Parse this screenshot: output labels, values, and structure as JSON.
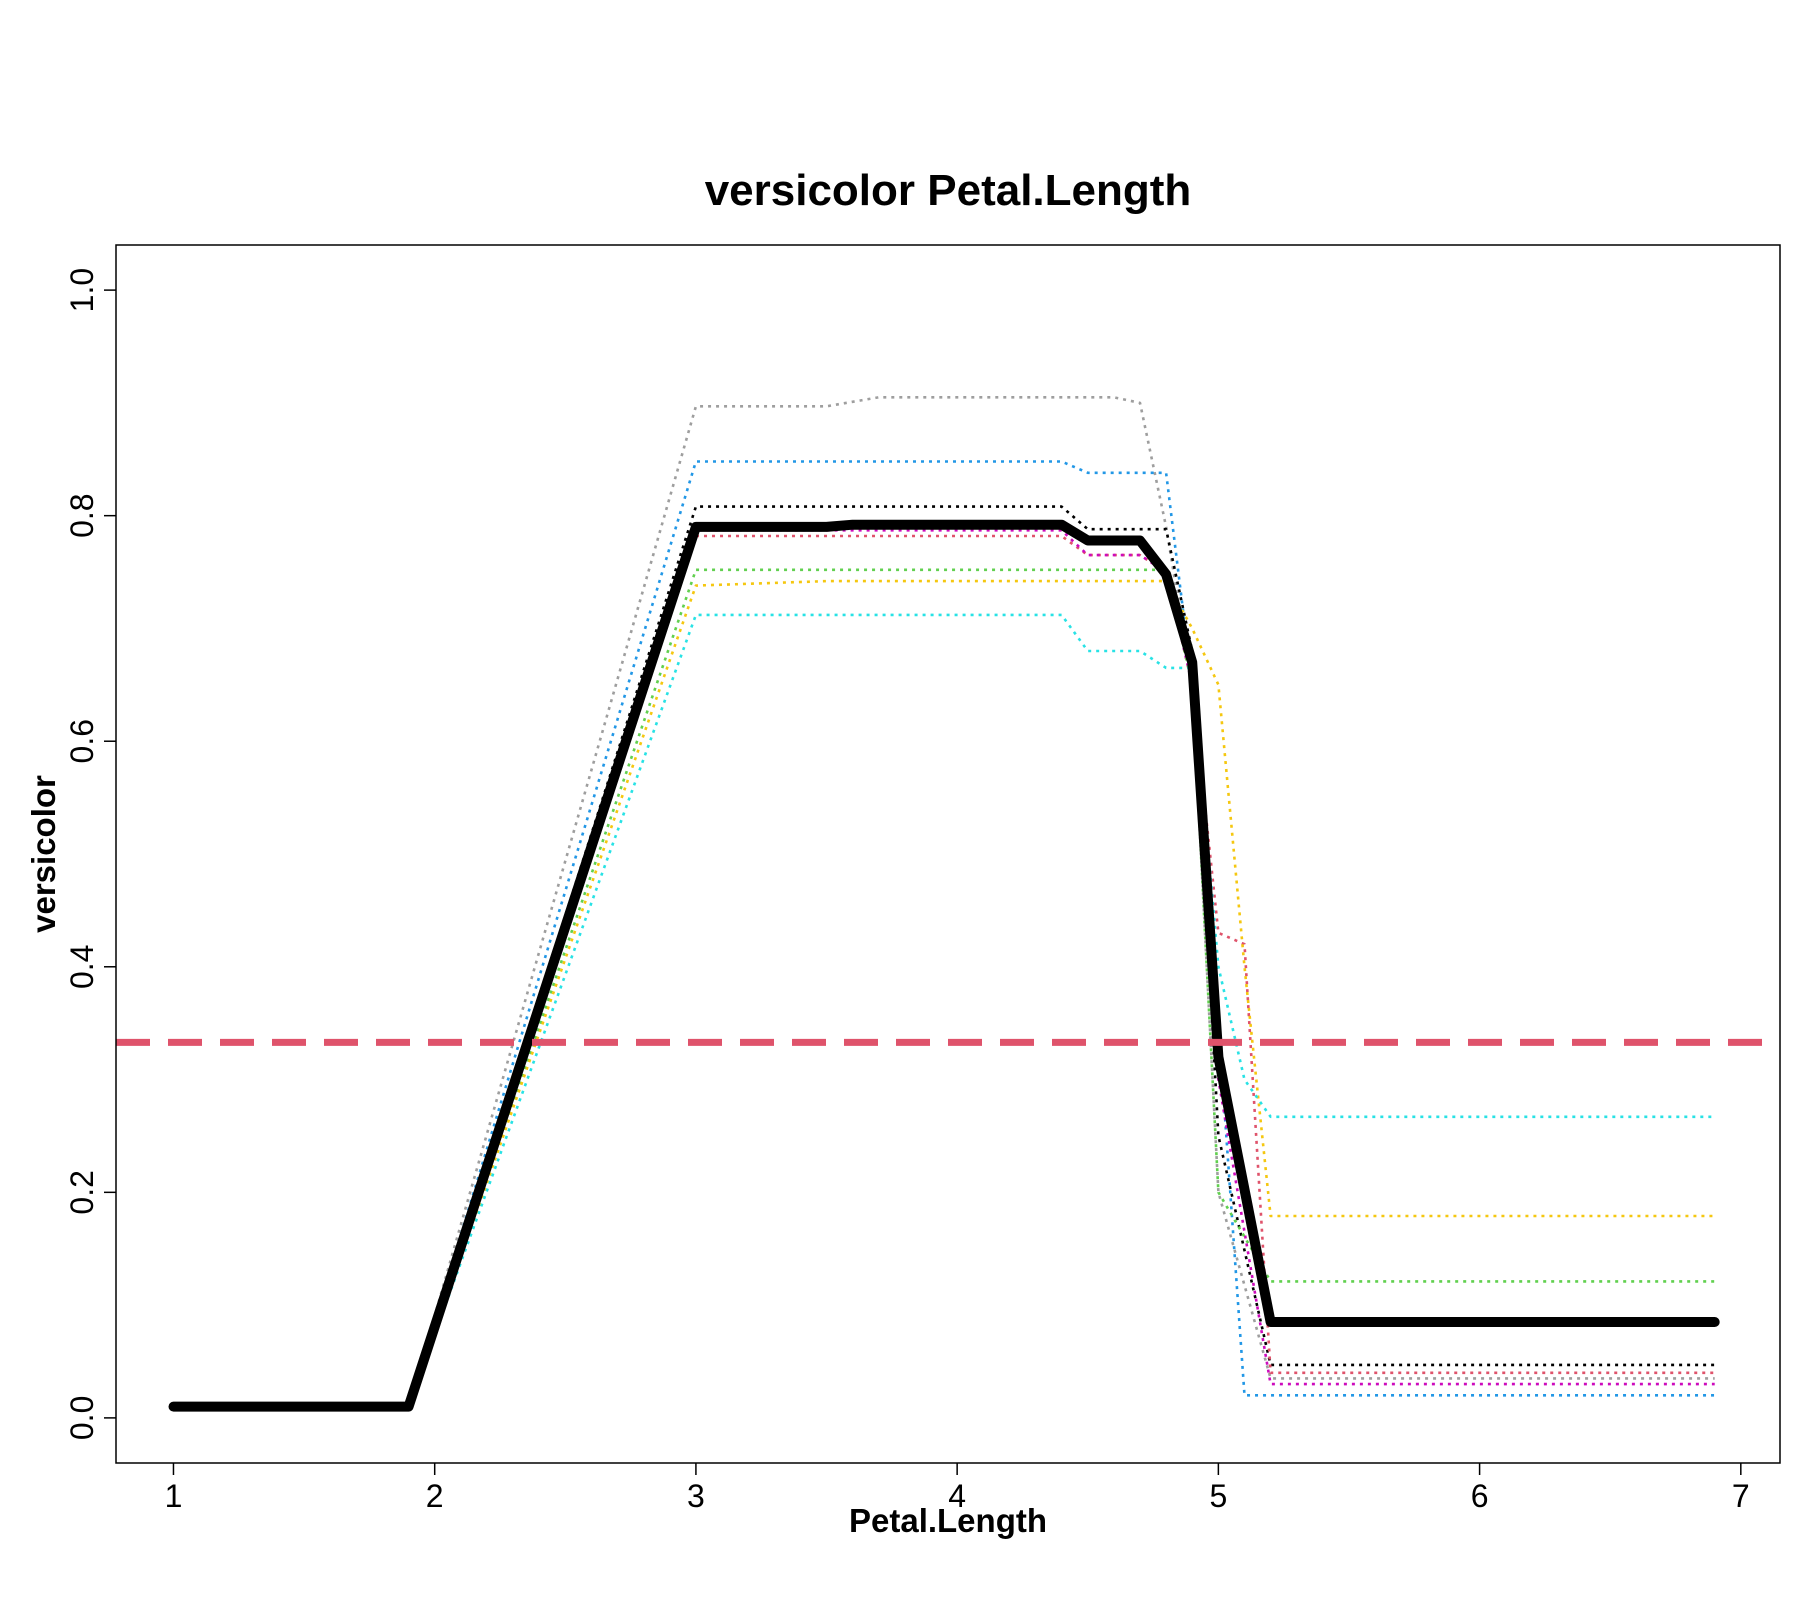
{
  "chart_data": {
    "type": "line",
    "title": "versicolor  Petal.Length",
    "xlabel": "Petal.Length",
    "ylabel": "versicolor",
    "xlim": [
      0.78,
      7.15
    ],
    "ylim": [
      -0.04,
      1.04
    ],
    "x_ticks": [
      1,
      2,
      3,
      4,
      5,
      6,
      7
    ],
    "y_ticks": [
      0.0,
      0.2,
      0.4,
      0.6,
      0.8,
      1.0
    ],
    "x_tick_labels": [
      "1",
      "2",
      "3",
      "4",
      "5",
      "6",
      "7"
    ],
    "y_tick_labels": [
      "0.0",
      "0.2",
      "0.4",
      "0.6",
      "0.8",
      "1.0"
    ],
    "grid": false,
    "reference_line": {
      "y": 0.333,
      "color": "#df536b",
      "style": "dashed"
    },
    "series": [
      {
        "color": "#9e9e9e",
        "style": "dotted",
        "points": [
          [
            1,
            0.01
          ],
          [
            1.9,
            0.01
          ],
          [
            3.0,
            0.897
          ],
          [
            3.5,
            0.897
          ],
          [
            3.7,
            0.905
          ],
          [
            4.6,
            0.905
          ],
          [
            4.7,
            0.9
          ],
          [
            4.8,
            0.79
          ],
          [
            4.9,
            0.65
          ],
          [
            5.0,
            0.2
          ],
          [
            5.2,
            0.035
          ],
          [
            6.9,
            0.035
          ]
        ]
      },
      {
        "color": "#2297e6",
        "style": "dotted",
        "points": [
          [
            1,
            0.01
          ],
          [
            1.9,
            0.01
          ],
          [
            3.0,
            0.848
          ],
          [
            4.4,
            0.848
          ],
          [
            4.5,
            0.838
          ],
          [
            4.8,
            0.838
          ],
          [
            4.9,
            0.65
          ],
          [
            5.0,
            0.35
          ],
          [
            5.1,
            0.02
          ],
          [
            6.9,
            0.02
          ]
        ]
      },
      {
        "color": "#000000",
        "style": "dotted",
        "points": [
          [
            1,
            0.01
          ],
          [
            1.9,
            0.01
          ],
          [
            3.0,
            0.808
          ],
          [
            4.4,
            0.808
          ],
          [
            4.5,
            0.788
          ],
          [
            4.8,
            0.788
          ],
          [
            4.9,
            0.68
          ],
          [
            5.0,
            0.25
          ],
          [
            5.2,
            0.047
          ],
          [
            6.9,
            0.047
          ]
        ]
      },
      {
        "color": "#df536b",
        "style": "dotted",
        "points": [
          [
            1,
            0.01
          ],
          [
            1.9,
            0.01
          ],
          [
            3.0,
            0.782
          ],
          [
            4.4,
            0.782
          ],
          [
            4.5,
            0.765
          ],
          [
            4.7,
            0.765
          ],
          [
            4.8,
            0.75
          ],
          [
            4.9,
            0.65
          ],
          [
            5.0,
            0.43
          ],
          [
            5.1,
            0.42
          ],
          [
            5.2,
            0.04
          ],
          [
            6.9,
            0.04
          ]
        ]
      },
      {
        "color": "#cd0bbc",
        "style": "dotted",
        "points": [
          [
            1,
            0.01
          ],
          [
            1.9,
            0.01
          ],
          [
            3.0,
            0.787
          ],
          [
            4.4,
            0.787
          ],
          [
            4.5,
            0.765
          ],
          [
            4.7,
            0.765
          ],
          [
            4.8,
            0.75
          ],
          [
            4.9,
            0.65
          ],
          [
            5.0,
            0.3
          ],
          [
            5.2,
            0.03
          ],
          [
            6.9,
            0.03
          ]
        ]
      },
      {
        "color": "#61d04f",
        "style": "dotted",
        "points": [
          [
            1,
            0.01
          ],
          [
            1.9,
            0.01
          ],
          [
            3.0,
            0.752
          ],
          [
            4.5,
            0.752
          ],
          [
            4.8,
            0.752
          ],
          [
            4.9,
            0.65
          ],
          [
            5.0,
            0.2
          ],
          [
            5.2,
            0.121
          ],
          [
            6.9,
            0.121
          ]
        ]
      },
      {
        "color": "#f5c710",
        "style": "dotted",
        "points": [
          [
            1,
            0.01
          ],
          [
            1.9,
            0.01
          ],
          [
            3.0,
            0.738
          ],
          [
            3.5,
            0.742
          ],
          [
            4.8,
            0.742
          ],
          [
            4.9,
            0.7
          ],
          [
            5.0,
            0.65
          ],
          [
            5.1,
            0.4
          ],
          [
            5.2,
            0.179
          ],
          [
            6.9,
            0.179
          ]
        ]
      },
      {
        "color": "#28e2e5",
        "style": "dotted",
        "points": [
          [
            1,
            0.01
          ],
          [
            1.9,
            0.01
          ],
          [
            3.0,
            0.712
          ],
          [
            4.4,
            0.712
          ],
          [
            4.5,
            0.68
          ],
          [
            4.7,
            0.68
          ],
          [
            4.8,
            0.665
          ],
          [
            4.9,
            0.665
          ],
          [
            5.0,
            0.4
          ],
          [
            5.1,
            0.3
          ],
          [
            5.2,
            0.267
          ],
          [
            6.9,
            0.267
          ]
        ]
      },
      {
        "color": "#000000",
        "style": "solid",
        "emphasis": true,
        "points": [
          [
            1,
            0.01
          ],
          [
            1.9,
            0.01
          ],
          [
            3.0,
            0.79
          ],
          [
            3.5,
            0.79
          ],
          [
            3.6,
            0.792
          ],
          [
            4.4,
            0.792
          ],
          [
            4.5,
            0.778
          ],
          [
            4.7,
            0.778
          ],
          [
            4.8,
            0.748
          ],
          [
            4.9,
            0.67
          ],
          [
            5.0,
            0.32
          ],
          [
            5.2,
            0.085
          ],
          [
            6.9,
            0.085
          ]
        ]
      }
    ]
  }
}
